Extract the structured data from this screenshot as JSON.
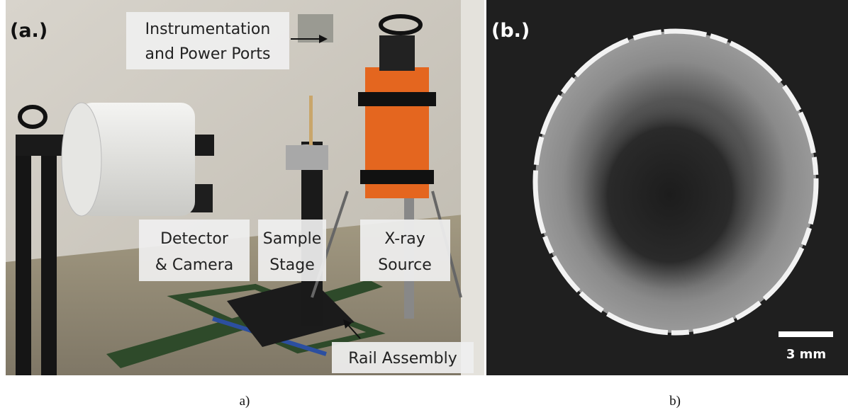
{
  "panel_a": {
    "tag": "(a.)",
    "labels": [
      {
        "lines": [
          "Instrumentation",
          "and Power Ports"
        ]
      },
      {
        "lines": [
          "Detector",
          "& Camera"
        ]
      },
      {
        "lines": [
          "Sample",
          "Stage"
        ]
      },
      {
        "lines": [
          "X-ray",
          "Source"
        ]
      },
      {
        "lines": [
          "Rail Assembly"
        ]
      }
    ],
    "caption": "a)"
  },
  "panel_b": {
    "tag": "(b.)",
    "scale_bar": "3 mm",
    "caption": "b)"
  }
}
